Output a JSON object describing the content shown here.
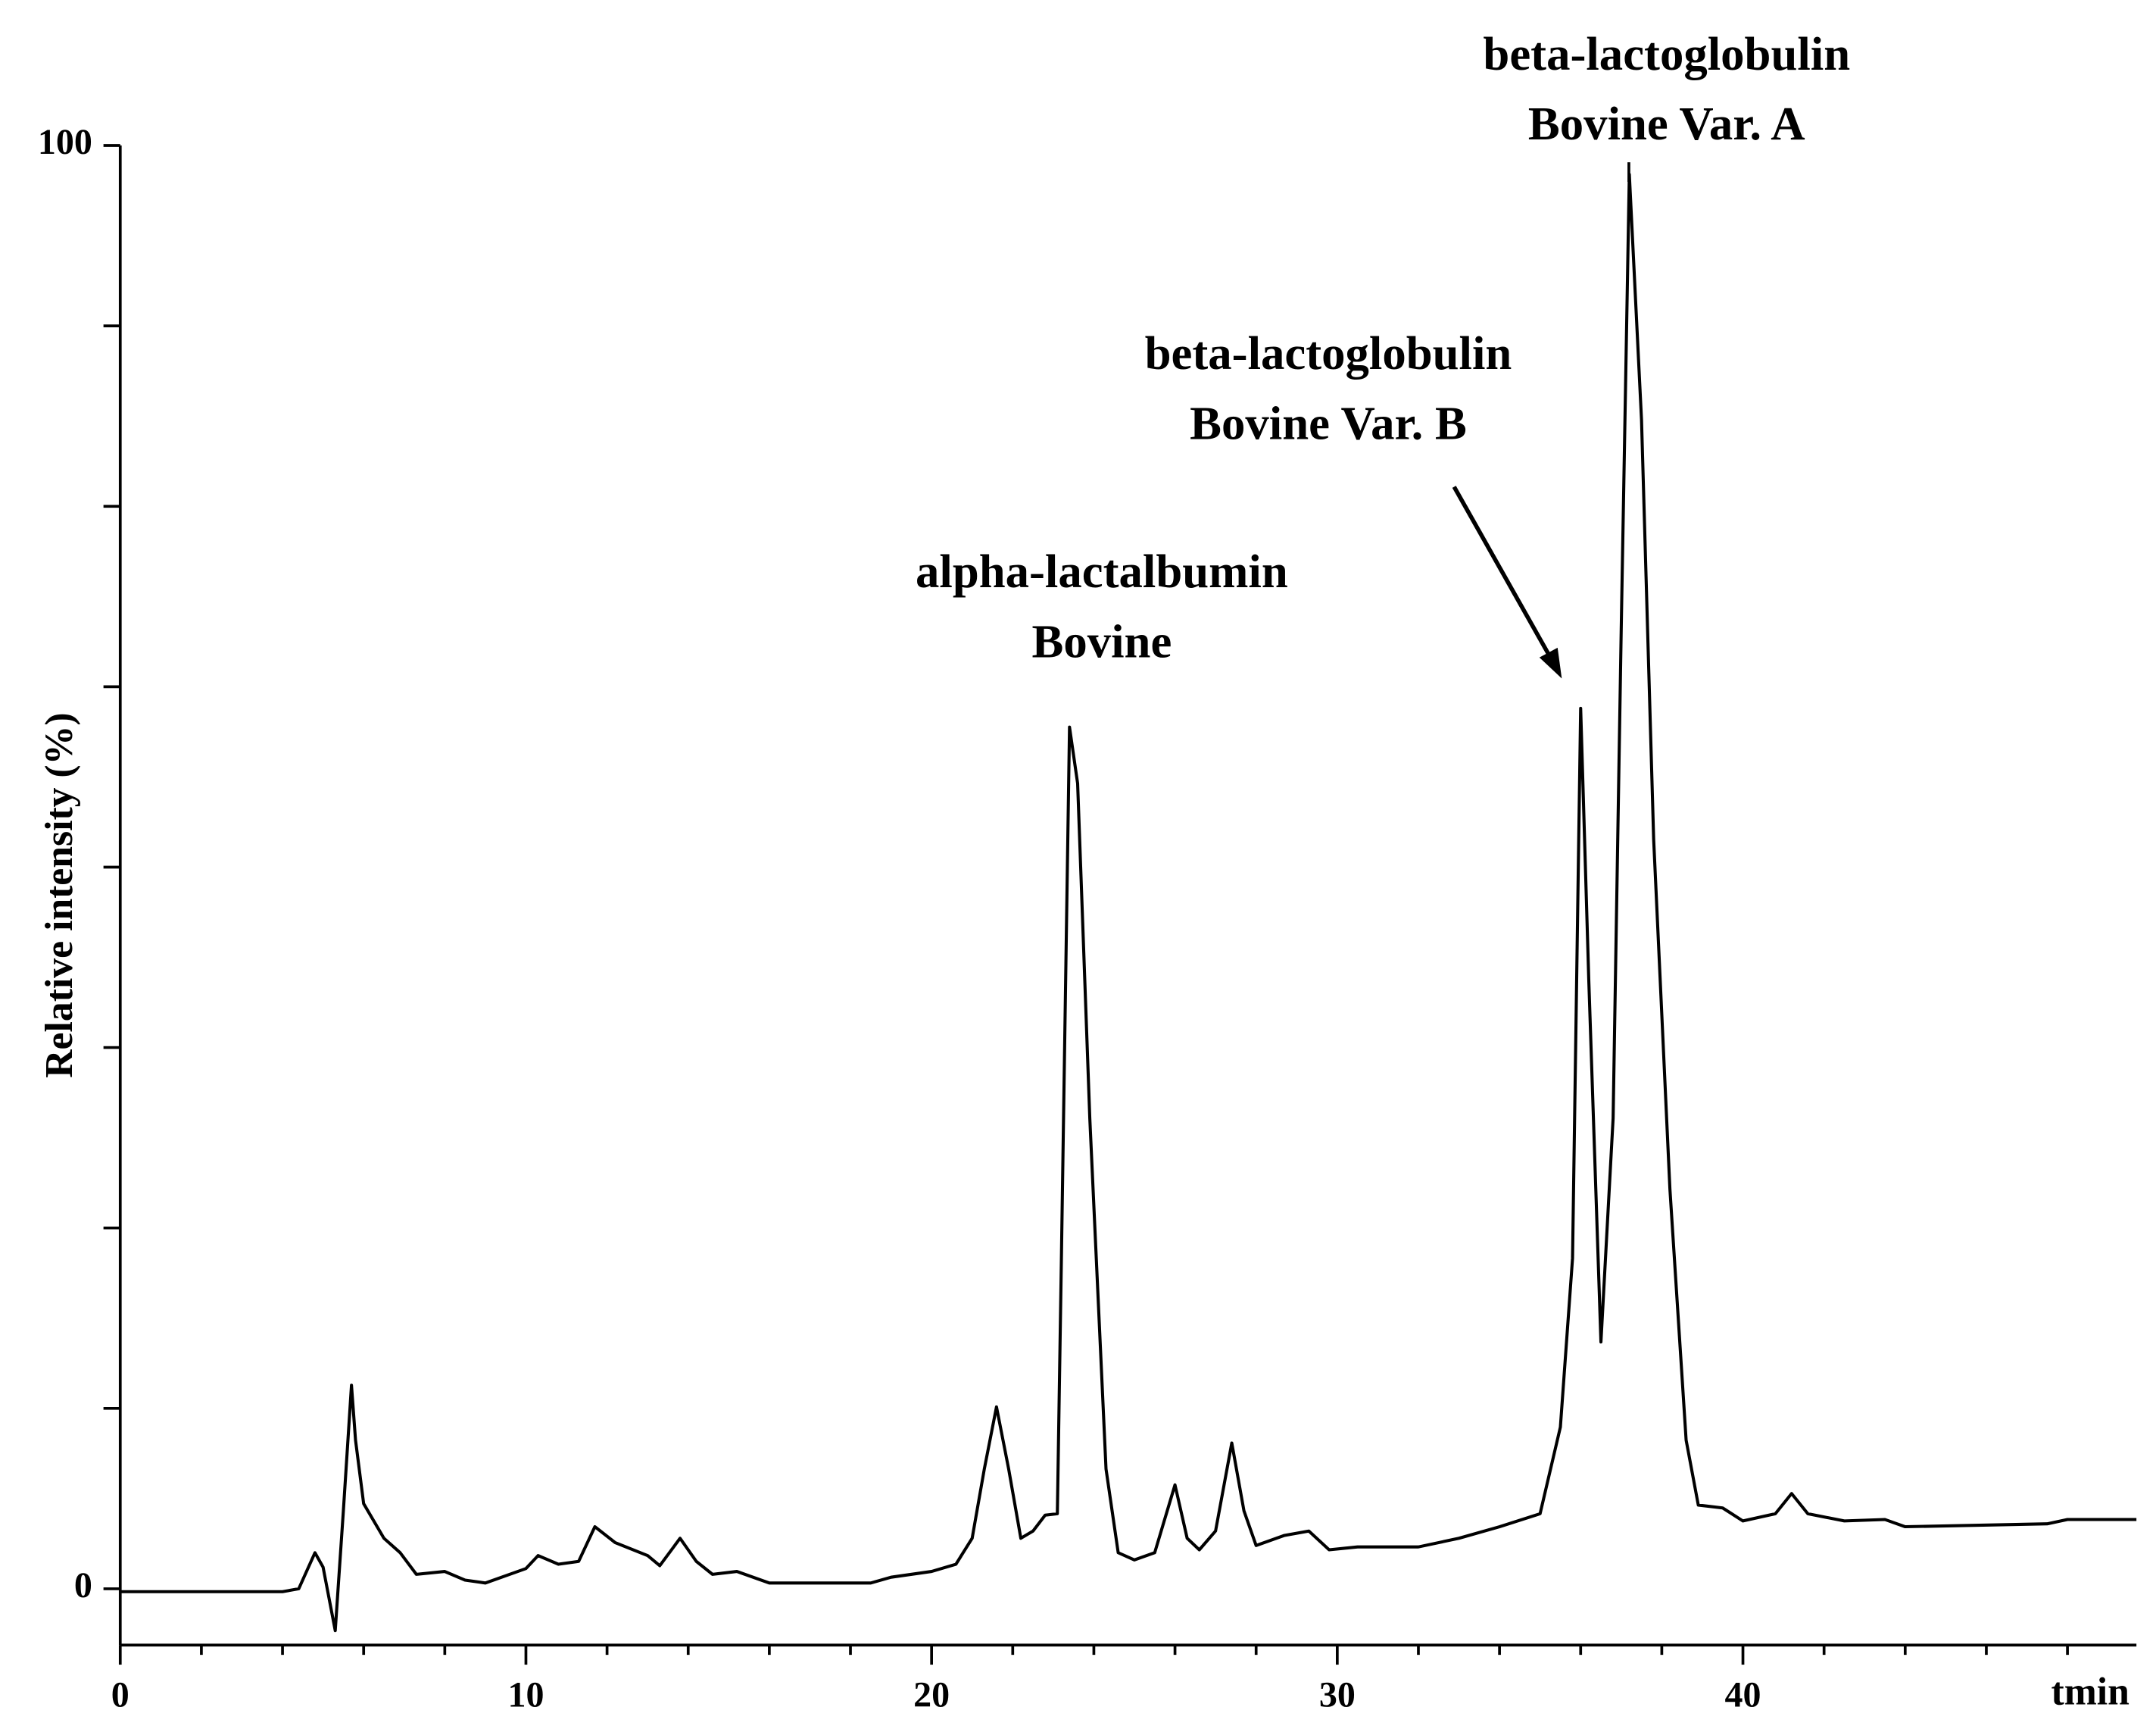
{
  "chart_data": {
    "type": "line",
    "x_label": "tmin",
    "y_label": "Relative intensity (%)",
    "xlim": [
      0,
      49.7
    ],
    "ylim": [
      -3.9,
      100
    ],
    "xticks": [
      0,
      10,
      20,
      30,
      40
    ],
    "x_minor_ticks": [
      2,
      4,
      6,
      8,
      12,
      14,
      16,
      18,
      22,
      24,
      26,
      28,
      32,
      34,
      36,
      38,
      42,
      44,
      46,
      48
    ],
    "yticks": [
      0,
      100
    ],
    "y_minor_ticks": [
      12.5,
      25,
      37.5,
      50,
      62.5,
      75,
      87.5
    ],
    "color": "#000000",
    "x": [
      0,
      4.0,
      4.4,
      4.8,
      5.0,
      5.3,
      5.5,
      5.7,
      5.8,
      6.0,
      6.5,
      6.9,
      7.3,
      8,
      8.5,
      9,
      10,
      10.3,
      10.8,
      11.3,
      11.7,
      12.2,
      13,
      13.3,
      13.8,
      14.2,
      14.6,
      15.2,
      16,
      18.5,
      19,
      20,
      20.6,
      21.0,
      21.3,
      21.6,
      21.9,
      22.2,
      22.5,
      22.8,
      23.1,
      23.2,
      23.4,
      23.6,
      23.9,
      24.3,
      24.6,
      25.0,
      25.5,
      26.0,
      26.3,
      26.6,
      27.0,
      27.4,
      27.7,
      28.0,
      28.7,
      29.3,
      29.8,
      30.5,
      32,
      33,
      34,
      35,
      35.5,
      35.8,
      36.0,
      36.2,
      36.5,
      36.8,
      37.0,
      37.2,
      37.5,
      37.8,
      38.2,
      38.6,
      38.9,
      39.5,
      40,
      40.8,
      41.2,
      41.6,
      42.5,
      43.5,
      44,
      47.5,
      48.0,
      49.7
    ],
    "values": [
      -0.2,
      -0.2,
      0,
      2.5,
      1.5,
      -2.9,
      5.4,
      14.1,
      10.3,
      5.9,
      3.5,
      2.5,
      1,
      1.2,
      0.6,
      0.4,
      1.4,
      2.3,
      1.7,
      1.9,
      4.3,
      3.2,
      2.3,
      1.6,
      3.5,
      1.9,
      1,
      1.2,
      0.4,
      0.4,
      0.8,
      1.2,
      1.7,
      3.5,
      8.3,
      12.6,
      8.3,
      3.5,
      4,
      5.1,
      5.2,
      22.9,
      59.7,
      55.8,
      32.6,
      8.3,
      2.5,
      2,
      2.5,
      7.2,
      3.5,
      2.7,
      4,
      10.1,
      5.4,
      3,
      3.7,
      4,
      2.7,
      2.9,
      2.9,
      3.5,
      4.3,
      5.2,
      11.2,
      22.9,
      61,
      42.2,
      17.1,
      32.6,
      66.5,
      98,
      81,
      51.9,
      27.7,
      10.3,
      5.8,
      5.6,
      4.7,
      5.2,
      6.6,
      5.2,
      4.7,
      4.8,
      4.3,
      4.5,
      4.8,
      4.8
    ],
    "annotations": [
      {
        "lines": [
          "alpha-lactalbumin",
          "Bovine"
        ]
      },
      {
        "lines": [
          "beta-lactoglobulin",
          "Bovine Var. B"
        ]
      },
      {
        "lines": [
          "beta-lactoglobulin",
          "Bovine Var. A"
        ]
      }
    ]
  }
}
